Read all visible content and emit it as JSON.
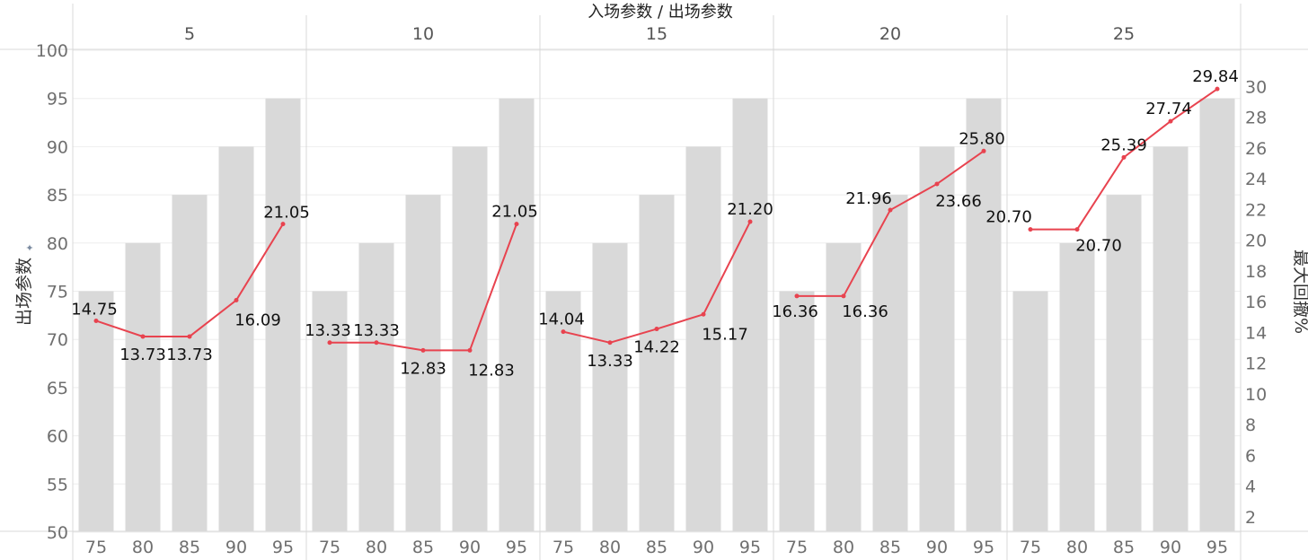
{
  "chart_data": {
    "type": "bar+line",
    "title": "入场参数 / 出场参数",
    "y_left_label": "出场参数",
    "y_right_label": "最大回撤%",
    "y_left_range": [
      50,
      100
    ],
    "y_left_ticks": [
      "50",
      "55",
      "60",
      "65",
      "70",
      "75",
      "80",
      "85",
      "90",
      "95",
      "100"
    ],
    "y_right_range": [
      0,
      31
    ],
    "y_right_ticks": [
      "2",
      "4",
      "6",
      "8",
      "10",
      "12",
      "14",
      "16",
      "18",
      "20",
      "22",
      "24",
      "26",
      "28",
      "30"
    ],
    "colors": {
      "bar": "#d9d9d9",
      "line": "#e8434f"
    },
    "panels": [
      {
        "header": "5",
        "categories": [
          "75",
          "80",
          "85",
          "90",
          "95"
        ],
        "bar_values": [
          75,
          80,
          85,
          90,
          95
        ],
        "line_values": [
          14.75,
          13.73,
          13.73,
          16.09,
          21.05
        ],
        "line_labels": [
          "14.75",
          "13.73",
          "13.73",
          "16.09",
          "21.05"
        ]
      },
      {
        "header": "10",
        "categories": [
          "75",
          "80",
          "85",
          "90",
          "95"
        ],
        "bar_values": [
          75,
          80,
          85,
          90,
          95
        ],
        "line_values": [
          13.33,
          13.33,
          12.83,
          12.83,
          21.05
        ],
        "line_labels": [
          "13.33",
          "13.33",
          "12.83",
          "12.83",
          "21.05"
        ]
      },
      {
        "header": "15",
        "categories": [
          "75",
          "80",
          "85",
          "90",
          "95"
        ],
        "bar_values": [
          75,
          80,
          85,
          90,
          95
        ],
        "line_values": [
          14.04,
          13.33,
          14.22,
          15.17,
          21.2
        ],
        "line_labels": [
          "14.04",
          "13.33",
          "14.22",
          "15.17",
          "21.20"
        ]
      },
      {
        "header": "20",
        "categories": [
          "75",
          "80",
          "85",
          "90",
          "95"
        ],
        "bar_values": [
          75,
          80,
          85,
          90,
          95
        ],
        "line_values": [
          16.36,
          16.36,
          21.96,
          23.66,
          25.8
        ],
        "line_labels": [
          "16.36",
          "16.36",
          "21.96",
          "23.66",
          "25.80"
        ]
      },
      {
        "header": "25",
        "categories": [
          "75",
          "80",
          "85",
          "90",
          "95"
        ],
        "bar_values": [
          75,
          80,
          85,
          90,
          95
        ],
        "line_values": [
          20.7,
          20.7,
          25.39,
          27.74,
          29.84
        ],
        "line_labels": [
          "20.70",
          "20.70",
          "25.39",
          "27.74",
          "29.84"
        ]
      }
    ]
  }
}
